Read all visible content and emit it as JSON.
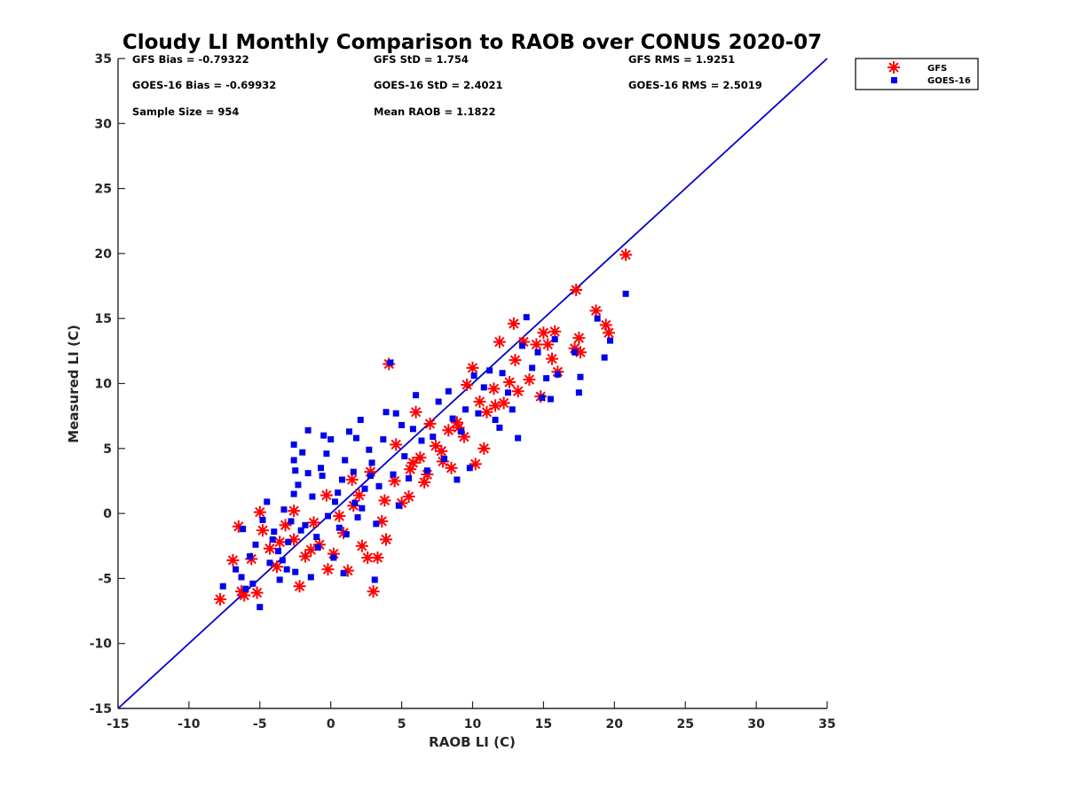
{
  "chart_data": {
    "type": "scatter",
    "title": "Cloudy LI Monthly Comparison to RAOB over CONUS 2020-07",
    "xlabel": "RAOB LI (C)",
    "ylabel": "Measured LI (C)",
    "xlim": [
      -15,
      35
    ],
    "ylim": [
      -15,
      35
    ],
    "xticks": [
      -15,
      -10,
      -5,
      0,
      5,
      10,
      15,
      20,
      25,
      30,
      35
    ],
    "yticks": [
      -15,
      -10,
      -5,
      0,
      5,
      10,
      15,
      20,
      25,
      30,
      35
    ],
    "xtick_labels": [
      "-15",
      "-10",
      "-5",
      "0",
      "5",
      "10",
      "15",
      "20",
      "25",
      "30",
      "35"
    ],
    "ytick_labels": [
      "-15",
      "-10",
      "-5",
      "0",
      "5",
      "10",
      "15",
      "20",
      "25",
      "30",
      "35"
    ],
    "grid": false,
    "legend_position": "top-right, outside axes",
    "reference_line": {
      "label": "1:1",
      "from": [
        -15,
        -15
      ],
      "to": [
        35,
        35
      ],
      "color": "#0000cc"
    },
    "stats": [
      [
        "GFS Bias = -0.79322",
        "GFS StD = 1.754",
        "GFS RMS = 1.9251"
      ],
      [
        "GOES-16 Bias = -0.69932",
        "GOES-16 StD = 2.4021",
        "GOES-16 RMS = 2.5019"
      ],
      [
        "Sample Size = 954",
        "Mean RAOB = 1.1822"
      ]
    ],
    "series": [
      {
        "name": "GFS",
        "marker": "asterisk",
        "color": "#ff0000",
        "points": [
          [
            -7.8,
            -6.6
          ],
          [
            -6.9,
            -3.6
          ],
          [
            -6.5,
            -1.0
          ],
          [
            -6.3,
            -6.0
          ],
          [
            -6.1,
            -6.3
          ],
          [
            -5.2,
            -6.1
          ],
          [
            -5.0,
            0.1
          ],
          [
            -5.6,
            -3.5
          ],
          [
            -4.8,
            -1.3
          ],
          [
            -4.3,
            -2.7
          ],
          [
            -3.8,
            -4.1
          ],
          [
            -3.2,
            -0.9
          ],
          [
            -2.6,
            -2.0
          ],
          [
            -2.2,
            -5.6
          ],
          [
            -1.8,
            -3.3
          ],
          [
            -1.2,
            -0.7
          ],
          [
            -0.8,
            -2.4
          ],
          [
            -0.3,
            1.4
          ],
          [
            0.2,
            -3.1
          ],
          [
            0.9,
            -1.5
          ],
          [
            1.2,
            -4.4
          ],
          [
            1.6,
            0.6
          ],
          [
            2.2,
            -2.5
          ],
          [
            2.6,
            -3.4
          ],
          [
            3.0,
            -6.0
          ],
          [
            3.3,
            -3.4
          ],
          [
            3.6,
            -0.6
          ],
          [
            3.9,
            -2.0
          ],
          [
            4.1,
            11.5
          ],
          [
            4.5,
            2.5
          ],
          [
            5.0,
            0.8
          ],
          [
            5.5,
            1.3
          ],
          [
            5.6,
            3.4
          ],
          [
            6.0,
            7.8
          ],
          [
            6.3,
            4.3
          ],
          [
            6.6,
            2.4
          ],
          [
            7.0,
            6.9
          ],
          [
            7.4,
            5.2
          ],
          [
            7.9,
            4.0
          ],
          [
            8.3,
            6.4
          ],
          [
            8.5,
            3.5
          ],
          [
            9.0,
            6.6
          ],
          [
            9.4,
            5.9
          ],
          [
            10.0,
            11.2
          ],
          [
            10.2,
            3.8
          ],
          [
            10.5,
            8.6
          ],
          [
            10.8,
            5.0
          ],
          [
            11.0,
            7.8
          ],
          [
            11.5,
            9.6
          ],
          [
            11.9,
            13.2
          ],
          [
            12.2,
            8.5
          ],
          [
            12.6,
            10.1
          ],
          [
            12.9,
            14.6
          ],
          [
            13.2,
            9.4
          ],
          [
            13.6,
            13.2
          ],
          [
            14.0,
            10.3
          ],
          [
            14.5,
            13.0
          ],
          [
            14.8,
            9.0
          ],
          [
            15.0,
            13.9
          ],
          [
            15.3,
            13.0
          ],
          [
            15.6,
            11.9
          ],
          [
            15.8,
            14.0
          ],
          [
            16.0,
            10.9
          ],
          [
            17.2,
            12.7
          ],
          [
            17.3,
            17.2
          ],
          [
            17.5,
            13.5
          ],
          [
            17.6,
            12.4
          ],
          [
            18.7,
            15.6
          ],
          [
            19.4,
            14.5
          ],
          [
            19.6,
            13.9
          ],
          [
            20.8,
            19.9
          ],
          [
            1.5,
            2.6
          ],
          [
            2.8,
            3.2
          ],
          [
            4.6,
            5.3
          ],
          [
            5.8,
            3.9
          ],
          [
            7.8,
            4.8
          ],
          [
            6.8,
            3.0
          ],
          [
            9.6,
            9.9
          ],
          [
            -2.6,
            0.2
          ],
          [
            -1.4,
            -2.8
          ],
          [
            0.6,
            -0.2
          ],
          [
            3.8,
            1.0
          ],
          [
            -3.6,
            -2.2
          ],
          [
            -0.2,
            -4.3
          ],
          [
            2.0,
            1.4
          ],
          [
            8.9,
            7.0
          ],
          [
            11.6,
            8.3
          ],
          [
            13.0,
            11.8
          ]
        ]
      },
      {
        "name": "GOES-16",
        "marker": "square",
        "color": "#0000ee",
        "points": [
          [
            -7.6,
            -5.6
          ],
          [
            -6.7,
            -4.3
          ],
          [
            -6.3,
            -4.9
          ],
          [
            -6.2,
            -1.2
          ],
          [
            -6.0,
            -5.8
          ],
          [
            -5.7,
            -3.3
          ],
          [
            -5.3,
            -2.4
          ],
          [
            -5.0,
            -7.2
          ],
          [
            -4.8,
            -0.5
          ],
          [
            -4.5,
            0.9
          ],
          [
            -4.3,
            -3.8
          ],
          [
            -4.0,
            -1.4
          ],
          [
            -3.7,
            -2.9
          ],
          [
            -3.6,
            -5.1
          ],
          [
            -3.3,
            0.3
          ],
          [
            -3.0,
            -2.2
          ],
          [
            -2.8,
            -0.6
          ],
          [
            -2.5,
            -4.5
          ],
          [
            -2.6,
            1.5
          ],
          [
            -2.3,
            2.2
          ],
          [
            -2.5,
            3.3
          ],
          [
            -2.6,
            4.1
          ],
          [
            -2.6,
            5.3
          ],
          [
            -2.0,
            4.7
          ],
          [
            -1.6,
            6.4
          ],
          [
            -1.3,
            1.3
          ],
          [
            -1.0,
            -1.8
          ],
          [
            -0.7,
            3.5
          ],
          [
            -0.5,
            6.0
          ],
          [
            -0.3,
            4.6
          ],
          [
            0.0,
            5.7
          ],
          [
            0.3,
            0.9
          ],
          [
            0.6,
            -1.1
          ],
          [
            0.8,
            2.6
          ],
          [
            1.0,
            4.1
          ],
          [
            1.3,
            6.3
          ],
          [
            1.6,
            3.2
          ],
          [
            1.9,
            -0.3
          ],
          [
            2.1,
            7.2
          ],
          [
            2.4,
            1.9
          ],
          [
            2.7,
            4.9
          ],
          [
            2.9,
            3.9
          ],
          [
            3.1,
            -5.1
          ],
          [
            3.4,
            2.1
          ],
          [
            3.7,
            5.7
          ],
          [
            3.9,
            7.8
          ],
          [
            4.2,
            11.6
          ],
          [
            4.4,
            3.0
          ],
          [
            4.6,
            7.7
          ],
          [
            4.8,
            0.6
          ],
          [
            5.2,
            4.4
          ],
          [
            5.5,
            2.7
          ],
          [
            5.8,
            6.5
          ],
          [
            6.0,
            9.1
          ],
          [
            6.4,
            5.6
          ],
          [
            6.8,
            3.3
          ],
          [
            7.2,
            5.9
          ],
          [
            7.6,
            8.6
          ],
          [
            8.0,
            4.2
          ],
          [
            8.3,
            9.4
          ],
          [
            8.6,
            7.3
          ],
          [
            8.9,
            2.6
          ],
          [
            9.2,
            6.3
          ],
          [
            9.5,
            8.0
          ],
          [
            9.8,
            3.5
          ],
          [
            10.1,
            10.6
          ],
          [
            10.4,
            7.7
          ],
          [
            10.8,
            9.7
          ],
          [
            11.2,
            11.0
          ],
          [
            11.6,
            7.2
          ],
          [
            11.9,
            6.6
          ],
          [
            12.1,
            10.8
          ],
          [
            12.5,
            9.3
          ],
          [
            12.8,
            8.0
          ],
          [
            13.2,
            5.8
          ],
          [
            13.5,
            12.9
          ],
          [
            13.8,
            15.1
          ],
          [
            14.2,
            11.2
          ],
          [
            14.6,
            12.4
          ],
          [
            14.9,
            8.9
          ],
          [
            15.2,
            10.4
          ],
          [
            15.5,
            8.8
          ],
          [
            15.8,
            13.4
          ],
          [
            16.0,
            10.7
          ],
          [
            17.2,
            12.4
          ],
          [
            17.5,
            9.3
          ],
          [
            17.6,
            10.5
          ],
          [
            18.8,
            15.0
          ],
          [
            19.3,
            12.0
          ],
          [
            19.7,
            13.3
          ],
          [
            20.8,
            16.9
          ],
          [
            -1.8,
            -0.9
          ],
          [
            -0.9,
            -2.6
          ],
          [
            0.2,
            -3.4
          ],
          [
            1.1,
            -1.6
          ],
          [
            2.2,
            0.4
          ],
          [
            3.2,
            -0.8
          ],
          [
            -3.1,
            -4.3
          ],
          [
            -4.1,
            -2.0
          ],
          [
            -1.4,
            -4.9
          ],
          [
            0.5,
            1.6
          ],
          [
            1.7,
            0.8
          ],
          [
            2.8,
            2.9
          ],
          [
            -0.2,
            -0.2
          ],
          [
            -2.1,
            -1.3
          ],
          [
            -3.4,
            -3.6
          ],
          [
            -5.5,
            -5.4
          ],
          [
            -0.6,
            2.9
          ],
          [
            0.9,
            -4.6
          ],
          [
            1.8,
            5.8
          ],
          [
            -1.6,
            3.1
          ],
          [
            5.0,
            6.8
          ]
        ]
      }
    ]
  }
}
